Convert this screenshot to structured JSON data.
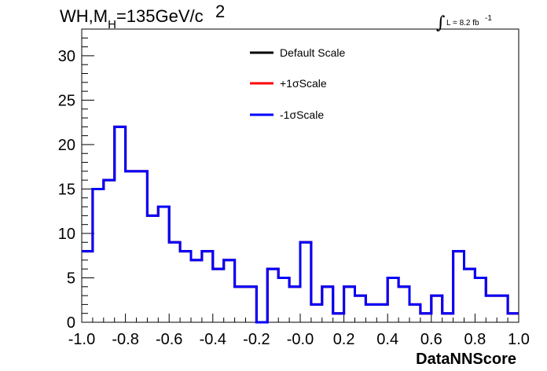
{
  "chart_data": {
    "type": "line",
    "title": {
      "main": "WH,M",
      "sub": "H",
      "rest": "=135GeV/c",
      "sup": "2"
    },
    "lumi": {
      "sign": "∫",
      "text": "L = 8.2 fb",
      "sup": "-1"
    },
    "xlabel": "DataNNScore",
    "ylabel": "",
    "xlim": [
      -1.0,
      1.0
    ],
    "ylim": [
      0,
      33
    ],
    "xticks": [
      "-1.0",
      "-0.8",
      "-0.6",
      "-0.4",
      "-0.2",
      "-0.0",
      "0.2",
      "0.4",
      "0.6",
      "0.8",
      "1.0"
    ],
    "xtick_values": [
      -1.0,
      -0.8,
      -0.6,
      -0.4,
      -0.2,
      0.0,
      0.2,
      0.4,
      0.6,
      0.8,
      1.0
    ],
    "yticks": [
      "0",
      "5",
      "10",
      "15",
      "20",
      "25",
      "30"
    ],
    "ytick_values": [
      0,
      5,
      10,
      15,
      20,
      25,
      30
    ],
    "grid": false,
    "legend_position": "top-center",
    "bin_edges": [
      -1.0,
      -0.95,
      -0.9,
      -0.85,
      -0.8,
      -0.7,
      -0.65,
      -0.6,
      -0.55,
      -0.5,
      -0.45,
      -0.4,
      -0.35,
      -0.3,
      -0.2,
      -0.15,
      -0.1,
      -0.05,
      0.0,
      0.05,
      0.1,
      0.15,
      0.2,
      0.25,
      0.3,
      0.4,
      0.45,
      0.5,
      0.55,
      0.6,
      0.65,
      0.7,
      0.75,
      0.8,
      0.85,
      0.95,
      1.0
    ],
    "series": [
      {
        "name": "Default Scale",
        "color": "#000000",
        "values": [
          8,
          15,
          16,
          22,
          17,
          12,
          13,
          9,
          8,
          7,
          8,
          6,
          7,
          4,
          0,
          6,
          5,
          4,
          9,
          2,
          4,
          1,
          4,
          3,
          2,
          5,
          4,
          2,
          1,
          3,
          1,
          8,
          6,
          5,
          3,
          1
        ]
      },
      {
        "name": "+1σScale",
        "color": "#ff0000",
        "values": [
          8,
          15,
          16,
          22,
          17,
          12,
          13,
          9,
          8,
          7,
          8,
          6,
          7,
          4,
          0,
          6,
          5,
          4,
          9,
          2,
          4,
          1,
          4,
          3,
          2,
          5,
          4,
          2,
          1,
          3,
          1,
          8,
          6,
          5,
          3,
          1
        ]
      },
      {
        "name": "-1σScale",
        "color": "#0000ff",
        "values": [
          8,
          15,
          16,
          22,
          17,
          12,
          13,
          9,
          8,
          7,
          8,
          6,
          7,
          4,
          0,
          6,
          5,
          4,
          9,
          2,
          4,
          1,
          4,
          3,
          2,
          5,
          4,
          2,
          1,
          3,
          1,
          8,
          6,
          5,
          3,
          1
        ]
      }
    ]
  }
}
